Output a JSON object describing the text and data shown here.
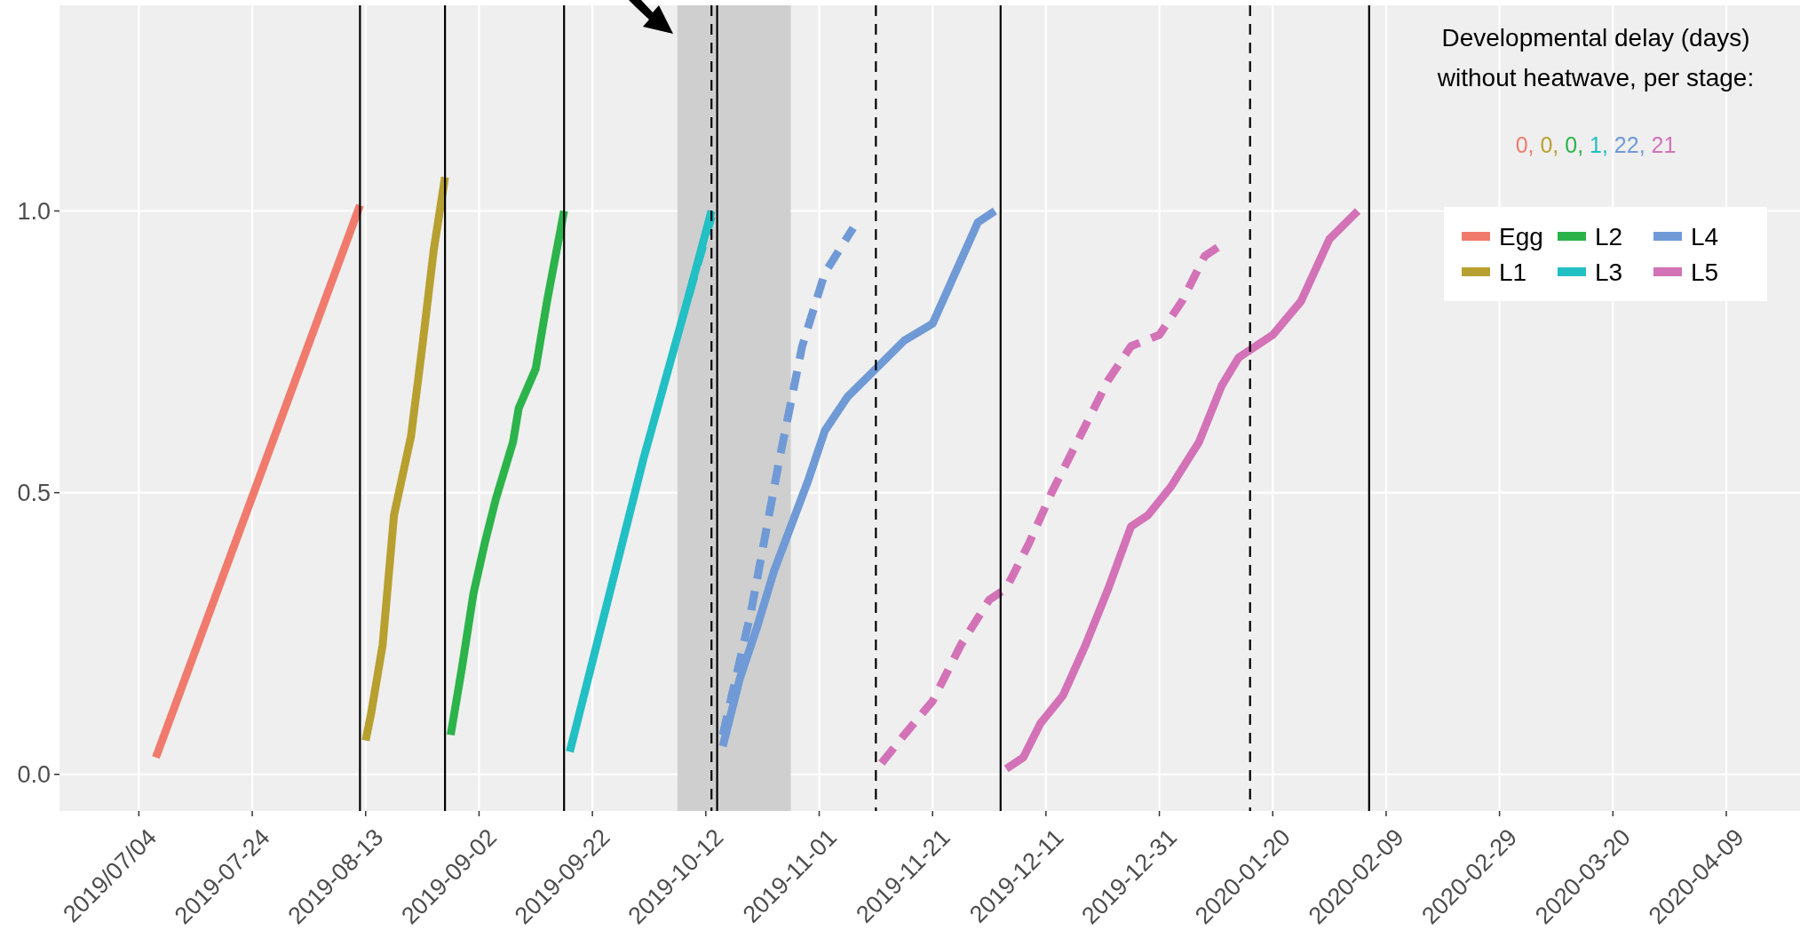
{
  "chart_data": {
    "type": "line",
    "xlim": [
      "2019-06-20",
      "2020-04-22"
    ],
    "ylim": [
      -0.065,
      1.365
    ],
    "xticks": [
      {
        "value": "2019-07-04",
        "label": "2019/07/04"
      },
      "2019-07-24",
      "2019-08-13",
      "2019-09-02",
      "2019-09-22",
      "2019-10-12",
      "2019-11-01",
      "2019-11-21",
      "2019-12-11",
      "2019-12-31",
      "2020-01-20",
      "2020-02-09",
      "2020-02-29",
      "2020-03-20",
      "2020-04-09"
    ],
    "yticks": [
      {
        "value": 0,
        "label": "0.0"
      },
      0.5,
      {
        "value": 1,
        "label": "1.0"
      }
    ],
    "grid": true,
    "legend": "top right",
    "series": [
      {
        "name": "Egg",
        "color": "#f07a6c",
        "line_style": "solid",
        "x": [
          "2019-07-07",
          "2019-08-12"
        ],
        "values": [
          0.03,
          1.01
        ]
      },
      {
        "name": "L1",
        "color": "#b8a030",
        "line_style": "solid",
        "x": [
          "2019-08-13",
          "2019-08-14",
          "2019-08-16",
          "2019-08-18",
          "2019-08-21",
          "2019-08-23",
          "2019-08-25",
          "2019-08-27"
        ],
        "values": [
          0.06,
          0.11,
          0.23,
          0.46,
          0.6,
          0.76,
          0.93,
          1.06
        ]
      },
      {
        "name": "L2",
        "color": "#2cb34a",
        "line_style": "solid",
        "x": [
          "2019-08-28",
          "2019-08-30",
          "2019-09-01",
          "2019-09-03",
          "2019-09-05",
          "2019-09-08",
          "2019-09-09",
          "2019-09-12",
          "2019-09-14",
          "2019-09-17"
        ],
        "values": [
          0.07,
          0.19,
          0.32,
          0.41,
          0.49,
          0.59,
          0.65,
          0.72,
          0.84,
          1.0
        ]
      },
      {
        "name": "L3",
        "color": "#22bfc4",
        "line_style": "solid",
        "x": [
          "2019-09-18",
          "2019-10-01",
          "2019-10-09",
          "2019-10-13"
        ],
        "values": [
          0.04,
          0.56,
          0.85,
          1.0
        ]
      },
      {
        "name": "L4",
        "color": "#6f9ad6",
        "line_style": "solid",
        "x": [
          "2019-10-15",
          "2019-10-18",
          "2019-10-21",
          "2019-10-24",
          "2019-10-27",
          "2019-10-30",
          "2019-11-02",
          "2019-11-06",
          "2019-11-11",
          "2019-11-16",
          "2019-11-21",
          "2019-11-25",
          "2019-11-29",
          "2019-12-02"
        ],
        "values": [
          0.05,
          0.17,
          0.26,
          0.36,
          0.44,
          0.52,
          0.61,
          0.67,
          0.72,
          0.77,
          0.8,
          0.89,
          0.98,
          1.0
        ]
      },
      {
        "name": "L5",
        "color": "#d372b7",
        "line_style": "solid",
        "x": [
          "2019-12-04",
          "2019-12-07",
          "2019-12-10",
          "2019-12-14",
          "2019-12-18",
          "2019-12-22",
          "2019-12-26",
          "2019-12-29",
          "2020-01-02",
          "2020-01-07",
          "2020-01-11",
          "2020-01-14",
          "2020-01-20",
          "2020-01-25",
          "2020-01-30",
          "2020-02-04"
        ],
        "values": [
          0.01,
          0.03,
          0.09,
          0.14,
          0.23,
          0.33,
          0.44,
          0.46,
          0.51,
          0.59,
          0.69,
          0.74,
          0.78,
          0.84,
          0.95,
          1.0
        ]
      },
      {
        "color": "#22bfc4",
        "line_style": "dashed",
        "x": [
          "2019-10-09",
          "2019-10-13"
        ],
        "values": [
          0.85,
          0.99
        ]
      },
      {
        "color": "#6f9ad6",
        "line_style": "dashed",
        "x": [
          "2019-10-15",
          "2019-10-20",
          "2019-10-25",
          "2019-10-29",
          "2019-11-02",
          "2019-11-07"
        ],
        "values": [
          0.07,
          0.29,
          0.56,
          0.76,
          0.89,
          0.97
        ]
      },
      {
        "color": "#d372b7",
        "line_style": "dashed",
        "x": [
          "2019-11-12",
          "2019-11-16",
          "2019-11-21",
          "2019-11-26",
          "2019-12-01",
          "2019-12-04",
          "2019-12-08",
          "2019-12-12",
          "2019-12-17",
          "2019-12-22",
          "2019-12-26",
          "2019-12-31",
          "2020-01-04",
          "2020-01-08",
          "2020-01-11"
        ],
        "values": [
          0.02,
          0.07,
          0.13,
          0.23,
          0.31,
          0.33,
          0.41,
          0.5,
          0.6,
          0.7,
          0.76,
          0.78,
          0.84,
          0.92,
          0.94
        ]
      }
    ],
    "ref_lines": [
      {
        "axis": "x",
        "value": "2019-08-12",
        "color": "#000000",
        "line_style": "solid"
      },
      {
        "axis": "x",
        "value": "2019-08-27",
        "color": "#000000",
        "line_style": "solid"
      },
      {
        "axis": "x",
        "value": "2019-09-17",
        "color": "#000000",
        "line_style": "solid"
      },
      {
        "axis": "x",
        "value": "2019-10-13",
        "color": "#000000",
        "line_style": "dashed"
      },
      {
        "axis": "x",
        "value": "2019-10-14",
        "color": "#000000",
        "line_style": "solid"
      },
      {
        "axis": "x",
        "value": "2019-11-11",
        "color": "#000000",
        "line_style": "dashed"
      },
      {
        "axis": "x",
        "value": "2019-12-03",
        "color": "#000000",
        "line_style": "solid"
      },
      {
        "axis": "x",
        "value": "2020-01-16",
        "color": "#000000",
        "line_style": "dashed"
      },
      {
        "axis": "x",
        "value": "2020-02-06",
        "color": "#000000",
        "line_style": "solid"
      }
    ],
    "bands": [
      {
        "axis": "x",
        "from": "2019-10-07",
        "to": "2019-10-27",
        "color": "#cfcfcf"
      }
    ],
    "annotations": [
      "Developmental delay (days)\nwithout heatwave, per stage:",
      "0, 0, 0, 1, 22, 21"
    ]
  }
}
